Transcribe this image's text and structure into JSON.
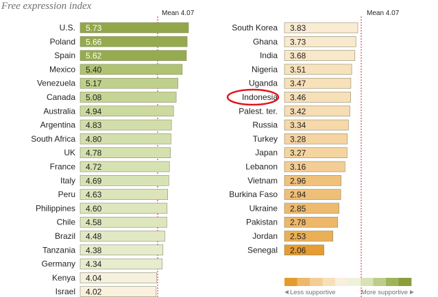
{
  "title": "Free expression index",
  "chart_data": [
    {
      "type": "bar",
      "orientation": "horizontal",
      "categories": [
        "U.S.",
        "Poland",
        "Spain",
        "Mexico",
        "Venezuela",
        "Canada",
        "Australia",
        "Argentina",
        "South Africa",
        "UK",
        "France",
        "Italy",
        "Peru",
        "Philippines",
        "Chile",
        "Brazil",
        "Tanzania",
        "Germany",
        "Kenya",
        "Israel"
      ],
      "values": [
        5.73,
        5.66,
        5.62,
        5.4,
        5.17,
        5.08,
        4.94,
        4.83,
        4.8,
        4.78,
        4.72,
        4.69,
        4.63,
        4.6,
        4.58,
        4.48,
        4.38,
        4.34,
        4.04,
        4.02
      ],
      "labels": [
        "5.73",
        "5.66",
        "5.62",
        "5.40",
        "5.17",
        "5.08",
        "4.94",
        "4.83",
        "4.80",
        "4.78",
        "4.72",
        "4.69",
        "4.63",
        "4.60",
        "4.58",
        "4.48",
        "4.38",
        "4.34",
        "4.04",
        "4.02"
      ],
      "reference_line": {
        "label": "Mean",
        "value_text": "4.07",
        "value": 4.07
      }
    },
    {
      "type": "bar",
      "orientation": "horizontal",
      "categories": [
        "South Korea",
        "Ghana",
        "India",
        "Nigeria",
        "Uganda",
        "Indonesia",
        "Palest. ter.",
        "Russia",
        "Turkey",
        "Japan",
        "Lebanon",
        "Vietnam",
        "Burkina Faso",
        "Ukraine",
        "Pakistan",
        "Jordan",
        "Senegal"
      ],
      "values": [
        3.83,
        3.73,
        3.68,
        3.51,
        3.47,
        3.46,
        3.42,
        3.34,
        3.28,
        3.27,
        3.16,
        2.96,
        2.94,
        2.85,
        2.78,
        2.53,
        2.06
      ],
      "labels": [
        "3.83",
        "3.73",
        "3.68",
        "3.51",
        "3.47",
        "3.46",
        "3.42",
        "3.34",
        "3.28",
        "3.27",
        "3.16",
        "2.96",
        "2.94",
        "2.85",
        "2.78",
        "2.53",
        "2.06"
      ],
      "reference_line": {
        "label": "Mean",
        "value_text": "4.07",
        "value": 4.07
      },
      "highlighted": "Indonesia"
    }
  ],
  "legend": {
    "less": "Less supportive",
    "more": "More supportive",
    "colors": [
      "#e59a2c",
      "#eeb86a",
      "#f3cd94",
      "#f7dfba",
      "#faeedc",
      "#f0f1dd",
      "#d9e2b6",
      "#bccd89",
      "#9fb45a",
      "#8a9e3c"
    ]
  },
  "colors": {
    "highlight_circle": "#e0141e",
    "mean_line": "#e0141e",
    "bar_border": "#8a8a6a"
  }
}
